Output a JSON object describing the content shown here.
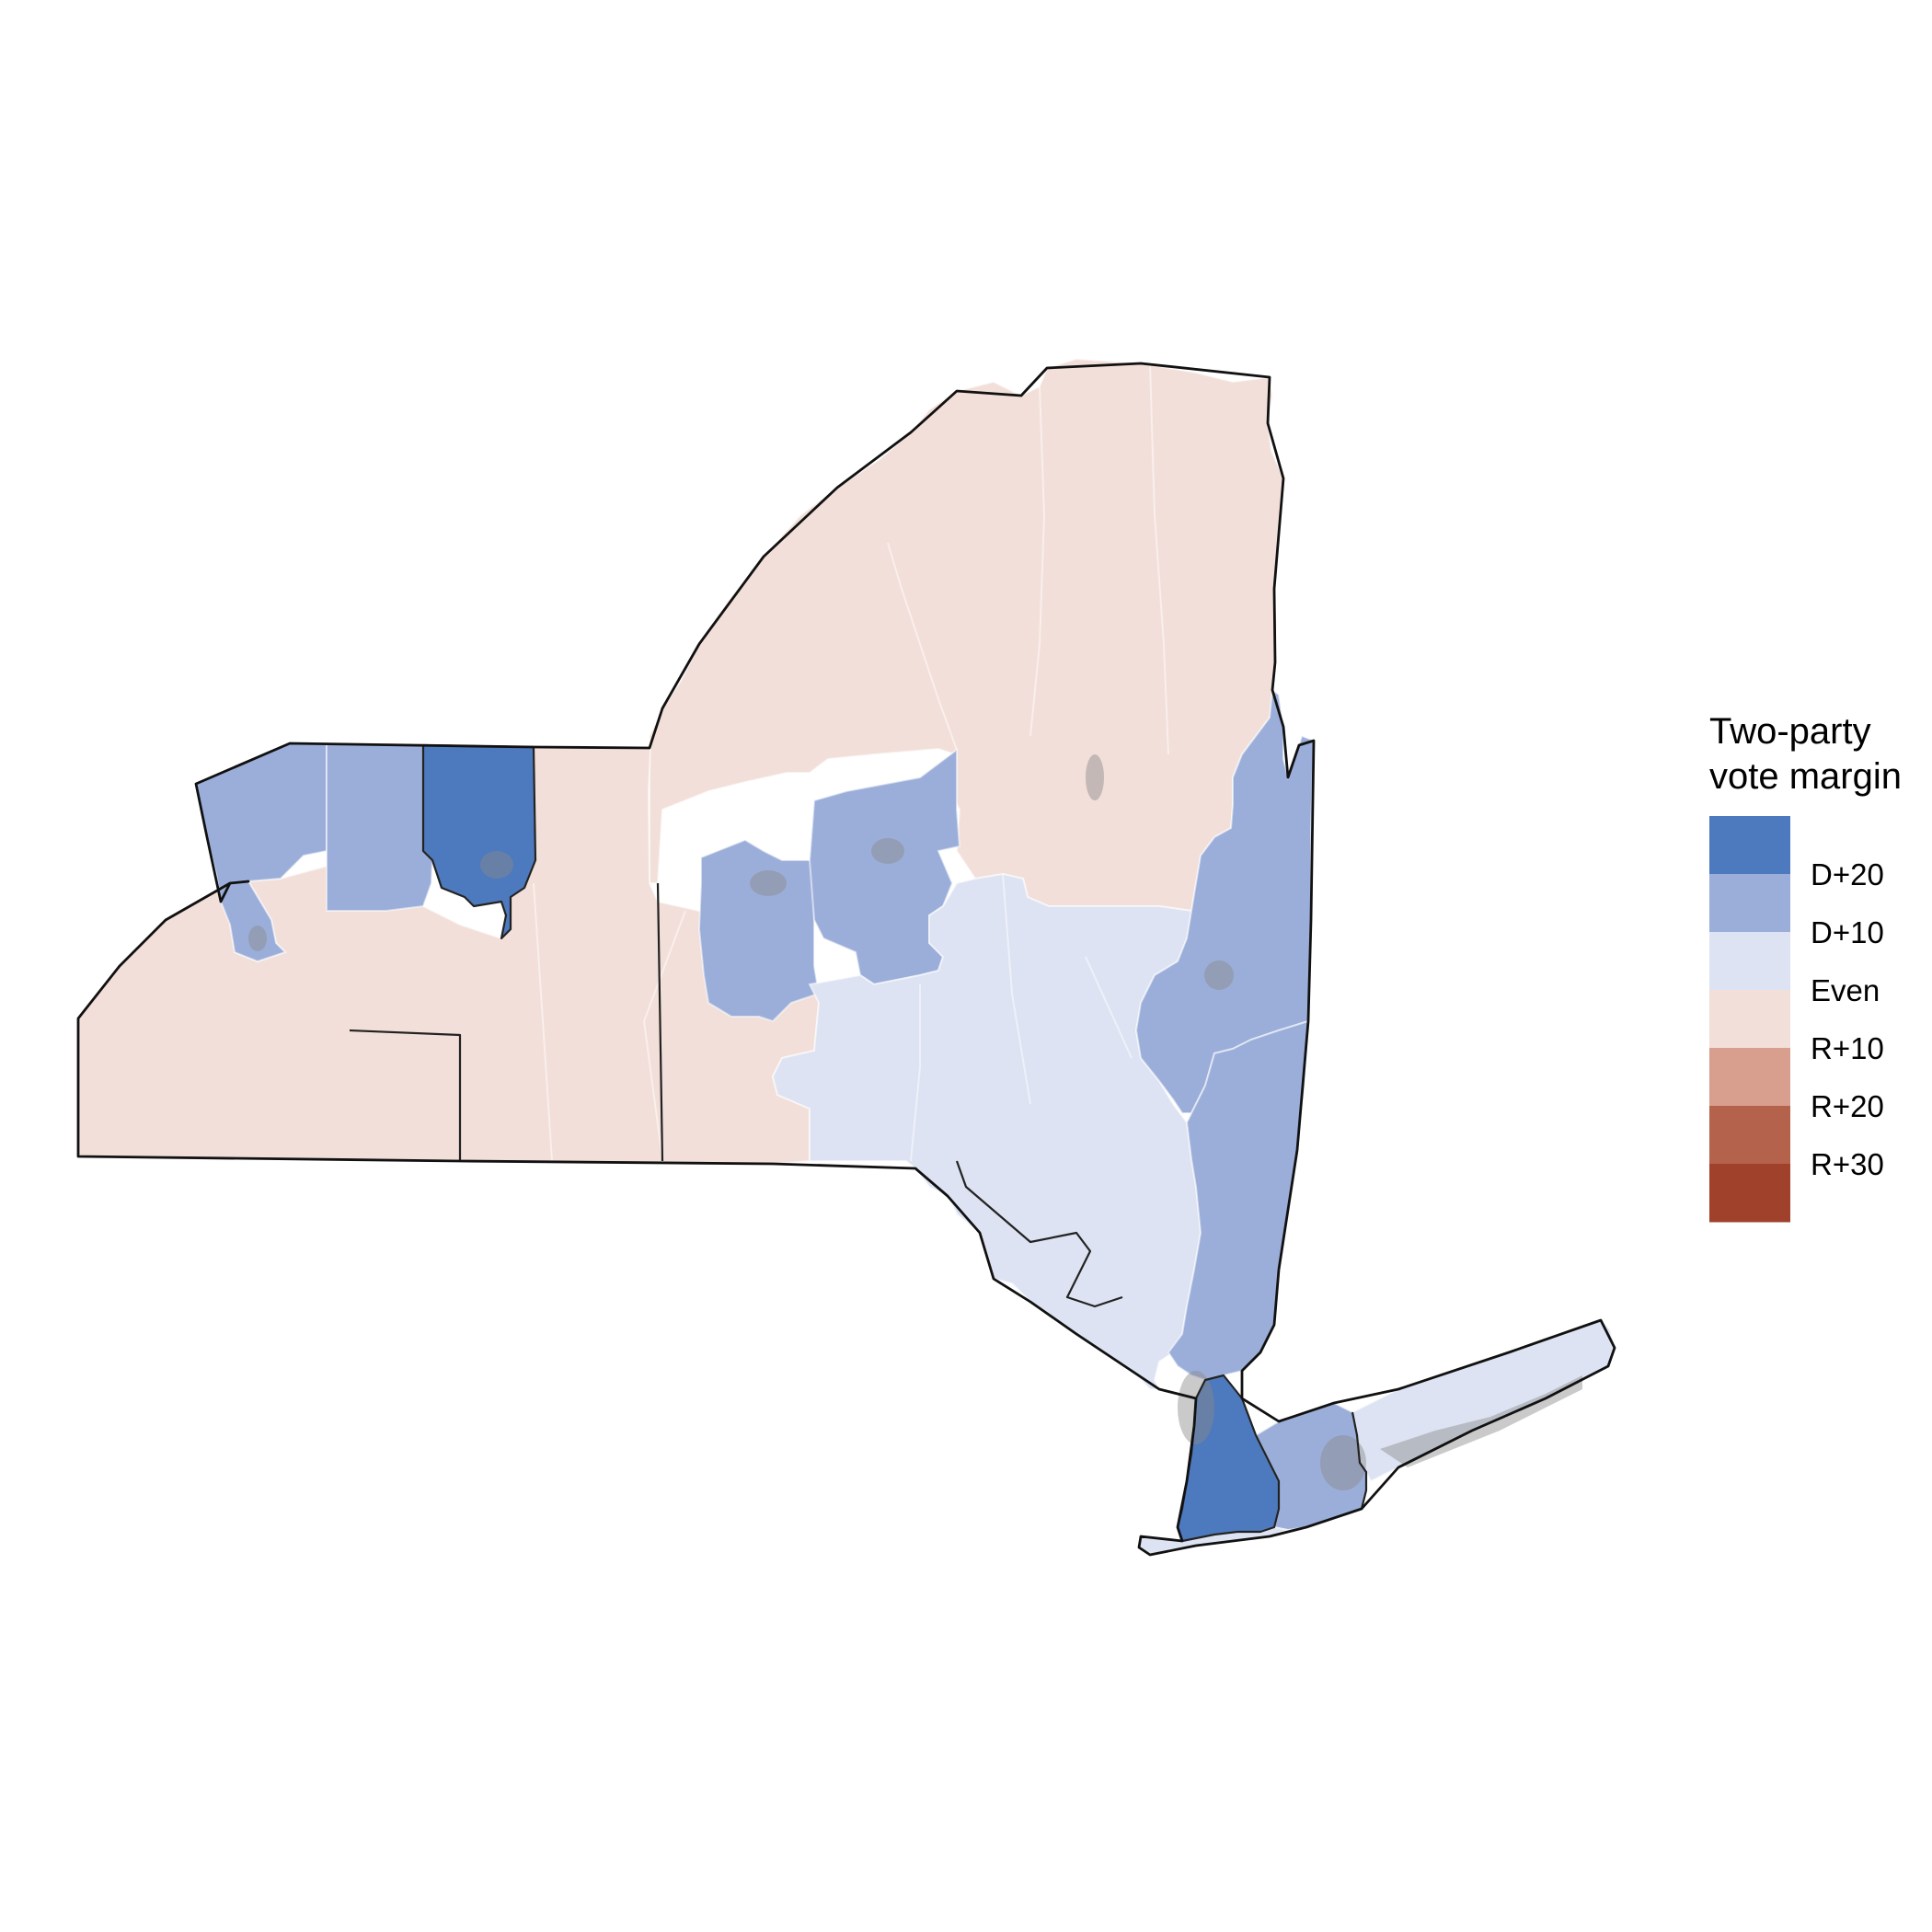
{
  "legend": {
    "title_line1": "Two-party",
    "title_line2": "vote margin",
    "bins": [
      {
        "color": "#4d79be"
      },
      {
        "color": "#9baed9"
      },
      {
        "color": "#dde3f2"
      },
      {
        "color": "#f2dfd9"
      },
      {
        "color": "#d99f8e"
      },
      {
        "color": "#b4624b"
      },
      {
        "color": "#a0412c"
      }
    ],
    "labels": [
      "D+20",
      "D+10",
      "Even",
      "R+10",
      "R+20",
      "R+30"
    ]
  },
  "colors": {
    "d_strong": "#4d79be",
    "d_lean": "#9baed9",
    "d_slight": "#dde3f2",
    "r_slight": "#f2dfd9",
    "urban_overlay": "#8a8a8a",
    "state_outline": "#111111",
    "district_line": "#ffffff"
  }
}
